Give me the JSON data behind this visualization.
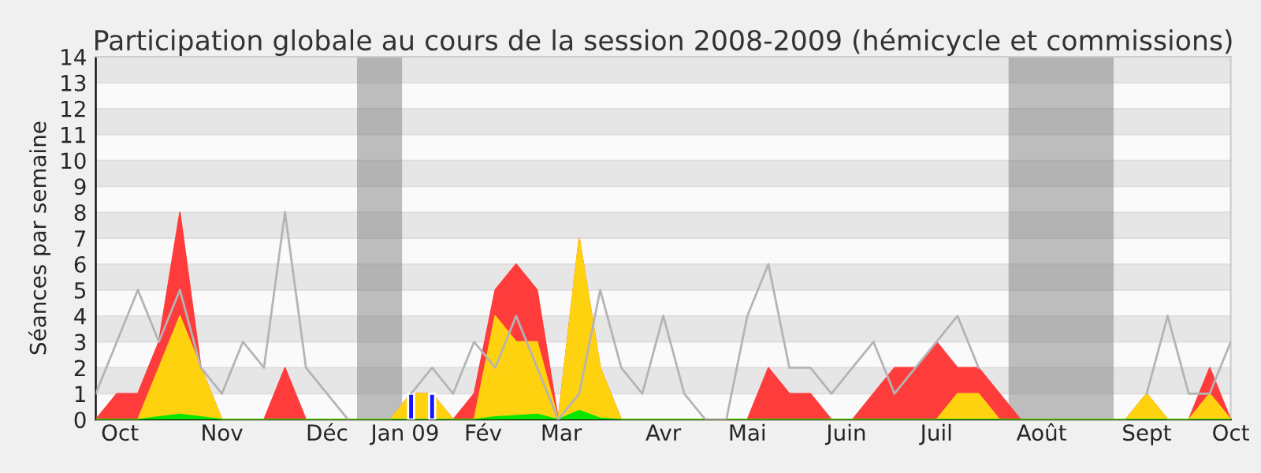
{
  "chart_data": {
    "type": "area",
    "title": "Participation globale au cours de la session 2008-2009 (hémicycle et commissions)",
    "ylabel": "Séances par semaine",
    "x": [
      "2008-09-29",
      "2008-10-06",
      "2008-10-13",
      "2008-10-20",
      "2008-10-27",
      "2008-11-03",
      "2008-11-10",
      "2008-11-17",
      "2008-11-24",
      "2008-12-01",
      "2008-12-08",
      "2008-12-15",
      "2008-12-22",
      "2008-12-29",
      "2009-01-05",
      "2009-01-12",
      "2009-01-19",
      "2009-01-26",
      "2009-02-02",
      "2009-02-09",
      "2009-02-16",
      "2009-02-23",
      "2009-03-02",
      "2009-03-09",
      "2009-03-16",
      "2009-03-23",
      "2009-03-30",
      "2009-04-06",
      "2009-04-13",
      "2009-04-20",
      "2009-04-27",
      "2009-05-04",
      "2009-05-11",
      "2009-05-18",
      "2009-05-25",
      "2009-06-01",
      "2009-06-08",
      "2009-06-15",
      "2009-06-22",
      "2009-06-29",
      "2009-07-06",
      "2009-07-13",
      "2009-07-20",
      "2009-07-27",
      "2009-08-03",
      "2009-08-10",
      "2009-08-17",
      "2009-08-24",
      "2009-08-31",
      "2009-09-07",
      "2009-09-14",
      "2009-09-21",
      "2009-09-28",
      "2009-10-05",
      "2009-10-12"
    ],
    "series": [
      {
        "color": "#ff3c3c",
        "values": [
          0,
          1,
          1,
          3,
          8,
          2,
          0,
          0,
          0,
          2,
          0,
          0,
          0,
          0,
          0,
          1,
          1,
          0,
          1,
          5,
          6,
          5,
          0,
          7,
          2,
          0,
          0,
          0,
          0,
          0,
          0,
          0,
          2,
          1,
          1,
          0,
          0,
          1,
          2,
          2,
          3,
          2,
          2,
          1,
          0,
          0,
          0,
          0,
          0,
          0,
          1,
          0,
          0,
          2,
          0
        ]
      },
      {
        "color": "#ffd20f",
        "values": [
          0,
          0,
          0,
          2,
          4,
          2,
          0,
          0,
          0,
          0,
          0,
          0,
          0,
          0,
          0,
          1,
          1,
          0,
          0,
          4,
          3,
          3,
          0,
          7,
          2,
          0,
          0,
          0,
          0,
          0,
          0,
          0,
          0,
          0,
          0,
          0,
          0,
          0,
          0,
          0,
          0,
          1,
          1,
          0,
          0,
          0,
          0,
          0,
          0,
          0,
          1,
          0,
          0,
          1,
          0
        ]
      },
      {
        "color": "#00e600",
        "values": [
          0,
          0,
          0,
          0.1,
          0.2,
          0.1,
          0,
          0,
          0,
          0,
          0,
          0,
          0,
          0,
          0,
          0,
          0,
          0,
          0,
          0.1,
          0.15,
          0.2,
          0,
          0.35,
          0.05,
          0,
          0,
          0,
          0,
          0,
          0,
          0,
          0,
          0,
          0,
          0,
          0,
          0,
          0,
          0,
          0,
          0,
          0,
          0,
          0,
          0,
          0,
          0,
          0,
          0,
          0,
          0,
          0,
          0,
          0
        ]
      },
      {
        "type": "bar",
        "color": "#1414ff",
        "values": [
          null,
          null,
          null,
          null,
          null,
          null,
          null,
          null,
          null,
          null,
          null,
          null,
          null,
          null,
          null,
          1,
          1,
          null,
          null,
          null,
          null,
          null,
          null,
          null,
          null,
          null,
          null,
          null,
          null,
          null,
          null,
          null,
          null,
          null,
          null,
          null,
          null,
          null,
          null,
          null,
          null,
          null,
          null,
          null,
          null,
          null,
          null,
          null,
          null,
          null,
          null,
          null,
          null,
          null,
          null
        ]
      },
      {
        "type": "line",
        "color": "#b4b4b4",
        "values": [
          1,
          3,
          5,
          3,
          5,
          2,
          1,
          3,
          2,
          8,
          2,
          1,
          0,
          null,
          null,
          1,
          2,
          1,
          3,
          2,
          4,
          2,
          0,
          1,
          5,
          2,
          1,
          4,
          1,
          0,
          0,
          4,
          6,
          2,
          2,
          1,
          2,
          3,
          1,
          2,
          3,
          4,
          2,
          null,
          null,
          null,
          null,
          null,
          null,
          null,
          1,
          4,
          1,
          1,
          3
        ]
      }
    ],
    "bands": [
      {
        "axis": "x",
        "from": "2008-12-25",
        "to": "2009-01-09",
        "color": "#7f7f7f"
      },
      {
        "axis": "x",
        "from": "2009-07-30",
        "to": "2009-09-03",
        "color": "#7f7f7f"
      }
    ],
    "xlim": [
      "2008-09-29",
      "2009-10-12"
    ],
    "xticks": [
      {
        "value": "2008-10-07",
        "label": "Oct"
      },
      {
        "value": "2008-11-10",
        "label": "Nov"
      },
      {
        "value": "2008-12-15",
        "label": "Déc"
      },
      {
        "value": "2009-01-10",
        "label": "Jan 09"
      },
      {
        "value": "2009-02-05",
        "label": "Fév"
      },
      {
        "value": "2009-03-03",
        "label": "Mar"
      },
      {
        "value": "2009-04-06",
        "label": "Avr"
      },
      {
        "value": "2009-05-04",
        "label": "Mai"
      },
      {
        "value": "2009-06-06",
        "label": "Juin"
      },
      {
        "value": "2009-07-06",
        "label": "Juil"
      },
      {
        "value": "2009-08-10",
        "label": "Août"
      },
      {
        "value": "2009-09-14",
        "label": "Sept"
      },
      {
        "value": "2009-10-12",
        "label": "Oct"
      }
    ],
    "ylim": [
      0,
      14
    ],
    "yticks": [
      0,
      1,
      2,
      3,
      4,
      5,
      6,
      7,
      8,
      9,
      10,
      11,
      12,
      13,
      14
    ],
    "grid": "y"
  }
}
